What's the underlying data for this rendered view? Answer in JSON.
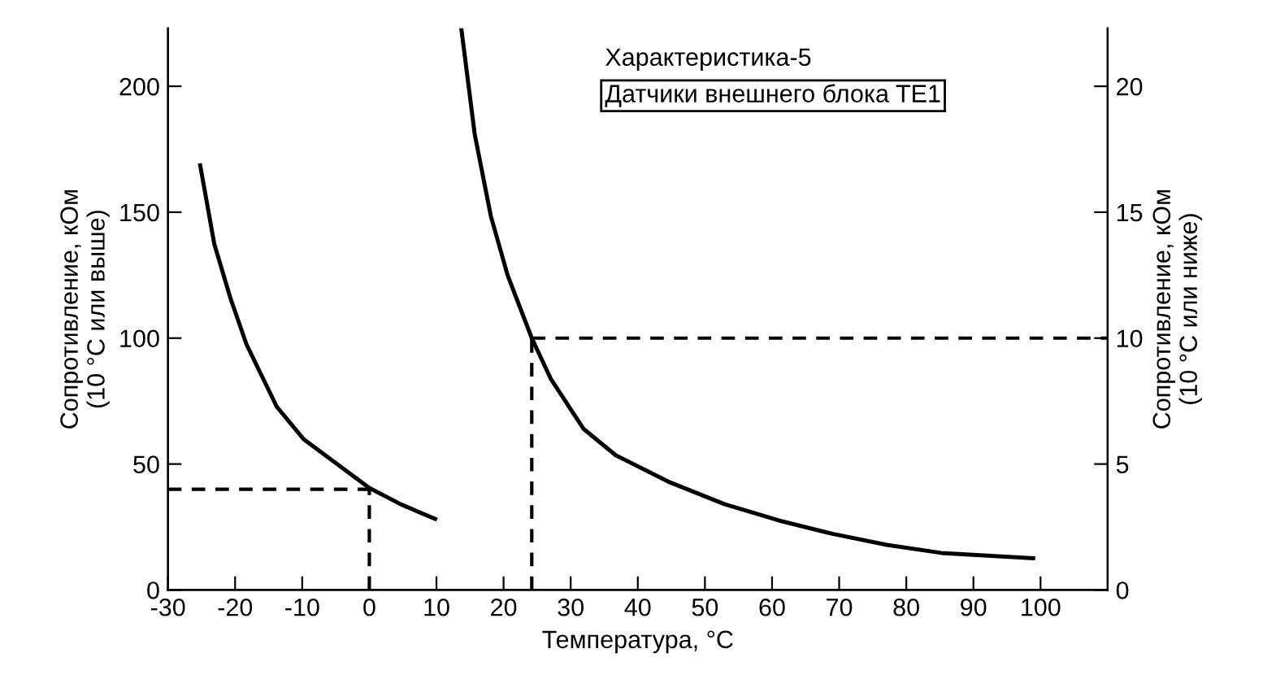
{
  "chart_data": {
    "type": "line",
    "title": "Характеристика-5",
    "subtitle": "Датчики внешнего блока TE1",
    "xlabel": "Температура, °C",
    "ylabel": "Сопротивление, кОм\n(10 °C или выше)",
    "y2label": "Сопротивление, кОм\n(10 °C или ниже)",
    "series": [
      {
        "color": "#000000",
        "x": [
          -25.2,
          -23.1,
          -20.7,
          -18.3,
          -13.8,
          -9.8,
          -4.9,
          0,
          4.7,
          9.8
        ],
        "values": [
          168.6,
          137.4,
          115.9,
          97.5,
          72.8,
          59.9,
          50.2,
          40.5,
          34.0,
          28.2
        ]
      },
      {
        "color": "#000000",
        "axis": "y2",
        "x": [
          13.7,
          15.7,
          18.1,
          20.6,
          24.2,
          27.0,
          31.9,
          36.7,
          44.8,
          52.9,
          61.0,
          69.0,
          77.1,
          85.2,
          98.9
        ],
        "values": [
          22.3,
          18.1,
          14.85,
          12.5,
          10.0,
          8.4,
          6.4,
          5.35,
          4.27,
          3.41,
          2.76,
          2.23,
          1.79,
          1.47,
          1.26
        ]
      }
    ],
    "xlim": [
      -30,
      110
    ],
    "xticks": [
      -30,
      -20,
      -10,
      0,
      10,
      20,
      30,
      40,
      50,
      60,
      70,
      80,
      90,
      100
    ],
    "ylim": [
      0,
      223
    ],
    "yticks": [
      0,
      50,
      100,
      150,
      200
    ],
    "y2lim": [
      0,
      22.3
    ],
    "y2ticks": [
      0,
      5,
      10,
      15,
      20
    ],
    "ref_lines": [
      {
        "axis": "y",
        "value": 40,
        "color": "#000000",
        "line_style": "dashed"
      },
      {
        "axis": "x",
        "value": 0,
        "color": "#000000",
        "line_style": "dashed"
      },
      {
        "axis": "y2",
        "value": 10,
        "color": "#000000",
        "line_style": "dashed"
      },
      {
        "axis": "x",
        "value": 24.2,
        "color": "#000000",
        "line_style": "dashed"
      }
    ],
    "grid": false,
    "legend": false,
    "marker": "none",
    "line_style": "solid"
  }
}
